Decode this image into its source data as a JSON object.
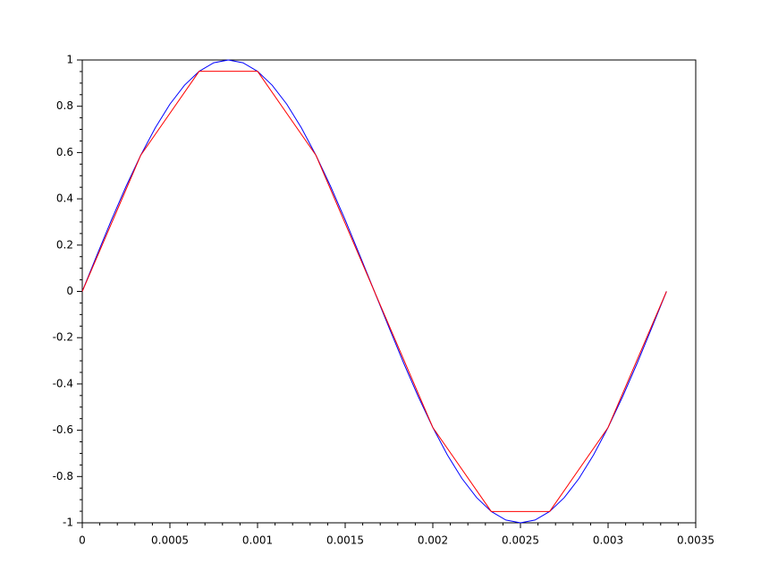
{
  "chart_data": {
    "type": "line",
    "xlim": [
      0,
      0.0035
    ],
    "xticks": [
      0,
      0.0005,
      0.001,
      0.0015,
      0.002,
      0.0025,
      0.003,
      0.0035
    ],
    "ylim": [
      -1,
      1
    ],
    "yticks": [
      -1,
      -0.8,
      -0.6,
      -0.4,
      -0.2,
      0,
      0.2,
      0.4,
      0.6,
      0.8,
      1
    ],
    "grid": false,
    "series": [
      {
        "color": "#0000ff",
        "x": [
          0,
          8.33e-05,
          0.0001667,
          0.00025,
          0.0003333,
          0.0004167,
          0.0005,
          0.0005833,
          0.0006667,
          0.00075,
          0.0008333,
          0.0009167,
          0.001,
          0.0010833,
          0.0011667,
          0.00125,
          0.0013333,
          0.0014167,
          0.0015,
          0.0015833,
          0.0016667,
          0.00175,
          0.0018333,
          0.0019167,
          0.002,
          0.0020833,
          0.0021667,
          0.00225,
          0.0023333,
          0.0024167,
          0.0025,
          0.0025833,
          0.0026667,
          0.00275,
          0.0028333,
          0.0029167,
          0.003,
          0.0030833,
          0.0031667,
          0.00325,
          0.0033333
        ],
        "values": [
          0,
          0.156,
          0.309,
          0.454,
          0.588,
          0.707,
          0.809,
          0.891,
          0.951,
          0.988,
          1,
          0.988,
          0.951,
          0.891,
          0.809,
          0.707,
          0.588,
          0.454,
          0.309,
          0.156,
          0,
          -0.156,
          -0.309,
          -0.454,
          -0.588,
          -0.707,
          -0.809,
          -0.891,
          -0.951,
          -0.988,
          -1,
          -0.988,
          -0.951,
          -0.891,
          -0.809,
          -0.707,
          -0.588,
          -0.454,
          -0.309,
          -0.156,
          0
        ]
      },
      {
        "color": "#ff0000",
        "x": [
          0,
          0.0003333,
          0.0006667,
          0.001,
          0.0013333,
          0.0016667,
          0.002,
          0.0023333,
          0.0026667,
          0.003,
          0.0033333
        ],
        "values": [
          0,
          0.588,
          0.951,
          0.951,
          0.588,
          0,
          -0.588,
          -0.951,
          -0.951,
          -0.588,
          0
        ]
      }
    ]
  }
}
